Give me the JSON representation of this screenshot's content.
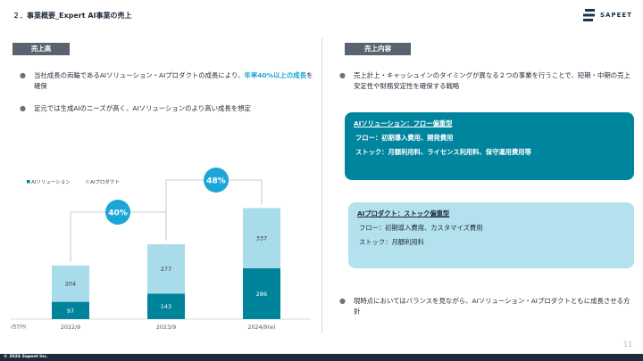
{
  "header": {
    "title": "２．事業概要_Expert AI事業の売上",
    "logo_text": "SAPEET"
  },
  "left": {
    "label": "売上高",
    "bullets": [
      {
        "pre": "当社成長の両輪であるAIソリューション・AIプロダクトの成長により、",
        "highlight": "年率40%以上の成長",
        "post": "を確保"
      },
      {
        "text": "足元では生成AIのニーズが高く、AIソリューションのより高い成長を想定"
      }
    ]
  },
  "right": {
    "label": "売上内容",
    "bullet_top": "売上計上・キャッシュインのタイミングが異なる２つの事業を行うことで、短期・中期の売上安定性や財務安定性を確保する戦略",
    "solution_box": {
      "title": "AIソリューション：フロー偏重型",
      "lines": [
        "フロー：初期導入費用、開発費用",
        "ストック：月額利用料、ライセンス利用料、保守運用費用等"
      ],
      "color": "#00859e"
    },
    "product_box": {
      "title": "AIプロダクト：ストック偏重型",
      "lines": [
        "フロー：初期導入費用、カスタマイズ費用",
        "ストック：月額利用料"
      ],
      "color": "#b4e1ee"
    },
    "bullet_bottom": "現時点においてはバランスを見ながら、AIソリューション・AIプロダクトともに成長させる方針"
  },
  "chart_data": {
    "type": "bar",
    "stacked": true,
    "categories": [
      "2022/9",
      "2023/9",
      "2024/9(e)"
    ],
    "series": [
      {
        "name": "AIソリューション",
        "values": [
          97,
          143,
          286
        ],
        "color": "#00849c"
      },
      {
        "name": "AIプロダクト",
        "values": [
          204,
          277,
          337
        ],
        "color": "#a9dcea"
      }
    ],
    "unit_label": "(百万円)",
    "growth_labels": [
      "40%",
      "48%"
    ],
    "growth_color": "#1aa6d6",
    "legend_position": "top-left",
    "grid": false
  },
  "footer": {
    "copyright": "© 2024 Sapeet Inc.",
    "page_number": "11"
  }
}
